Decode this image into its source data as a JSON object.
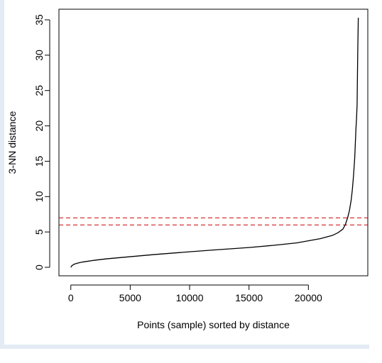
{
  "chart_data": {
    "type": "line",
    "title": "",
    "xlabel": "Points (sample) sorted by distance",
    "ylabel": "3-NN distance",
    "xlim": [
      -1000,
      25000
    ],
    "ylim": [
      -1.2,
      36.5
    ],
    "xticks": [
      0,
      5000,
      10000,
      15000,
      20000
    ],
    "yticks": [
      0,
      5,
      10,
      15,
      20,
      25,
      30,
      35
    ],
    "grid": false,
    "legend": "none",
    "series": [
      {
        "color": "#000000",
        "style": "solid",
        "x": [
          0,
          100,
          300,
          600,
          1000,
          2000,
          3000,
          5000,
          7000,
          10000,
          12000,
          15000,
          17000,
          19000,
          20000,
          21000,
          22000,
          22500,
          22900,
          23100,
          23300,
          23450,
          23600,
          23700,
          23800,
          23900,
          23950,
          24000,
          24050,
          24100,
          24150,
          24200
        ],
        "y": [
          0,
          0.25,
          0.45,
          0.6,
          0.75,
          1.0,
          1.2,
          1.5,
          1.8,
          2.2,
          2.45,
          2.8,
          3.1,
          3.45,
          3.75,
          4.05,
          4.5,
          4.9,
          5.4,
          6.0,
          7.0,
          8.0,
          9.5,
          11.0,
          13.0,
          15.5,
          17.5,
          19.5,
          21.0,
          23.0,
          30.0,
          35.3
        ]
      }
    ],
    "hlines": [
      {
        "y": 6,
        "color": "#cc0000",
        "style": "dashed"
      },
      {
        "y": 7,
        "color": "#cc0000",
        "style": "dashed"
      }
    ]
  }
}
